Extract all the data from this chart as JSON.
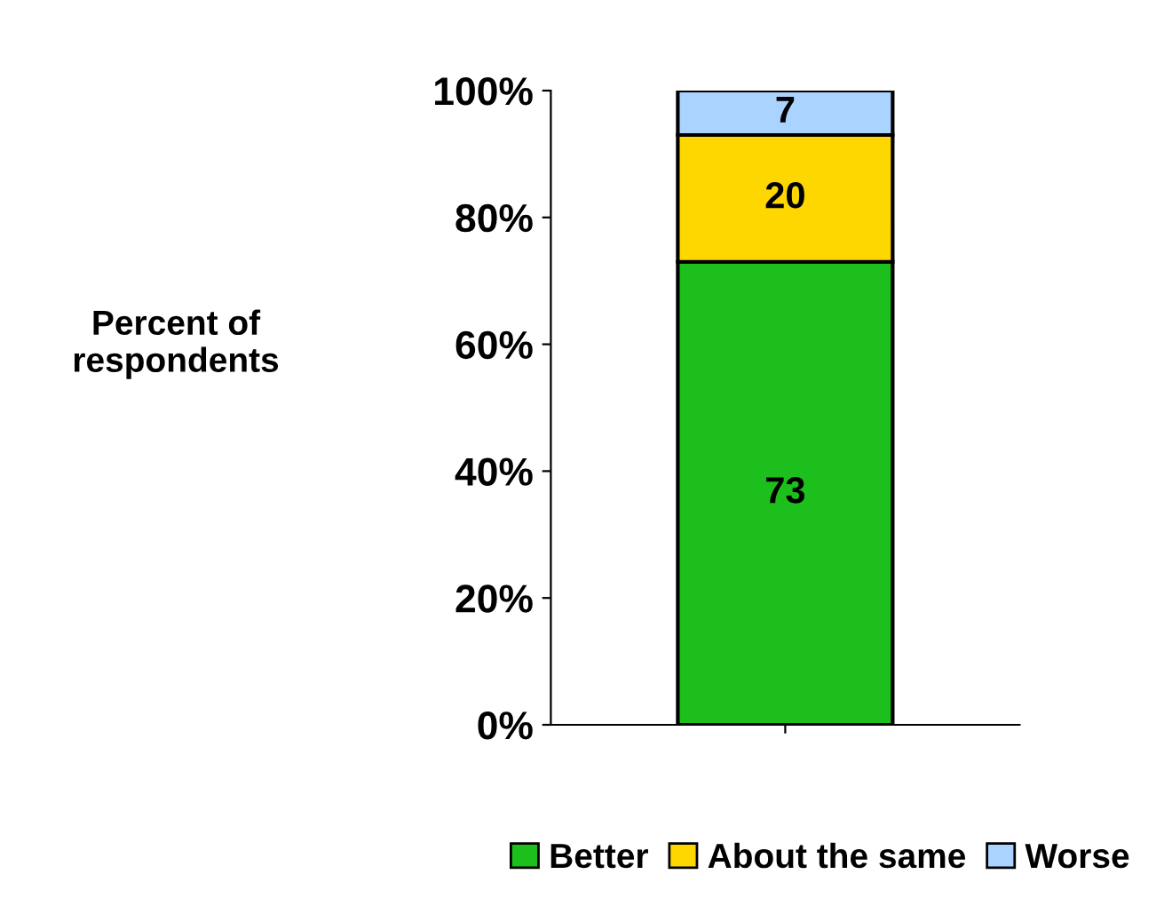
{
  "chart_data": {
    "type": "bar",
    "stacked": true,
    "categories": [
      null
    ],
    "ylabel": "Percent of respondents",
    "series": [
      {
        "name": "Better",
        "color": "#1cbf1c",
        "values": [
          73
        ]
      },
      {
        "name": "About the same",
        "color": "#ffd700",
        "values": [
          20
        ]
      },
      {
        "name": "Worse",
        "color": "#aad4ff",
        "values": [
          7
        ]
      }
    ],
    "ylim": [
      0,
      100
    ],
    "yticks": [
      {
        "value": 0,
        "label": "0%"
      },
      {
        "value": 20,
        "label": "20%"
      },
      {
        "value": 40,
        "label": "40%"
      },
      {
        "value": 60,
        "label": "60%"
      },
      {
        "value": 80,
        "label": "80%"
      },
      {
        "value": 100,
        "label": "100%"
      }
    ],
    "data_labels": true,
    "legend": "bottom",
    "grid": false
  }
}
